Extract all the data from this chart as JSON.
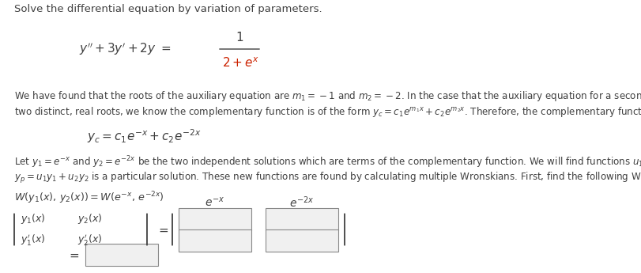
{
  "bg_color": "#ffffff",
  "text_color": "#404040",
  "red_color": "#cc2200",
  "title": "Solve the differential equation by variation of parameters.",
  "fig_width": 8.12,
  "fig_height": 3.45,
  "dpi": 100
}
